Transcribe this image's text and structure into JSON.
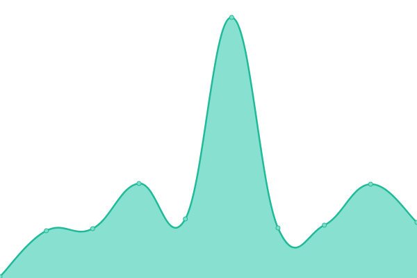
{
  "chart_data": {
    "type": "area",
    "categories": [
      null,
      null,
      null,
      null,
      null,
      null,
      null,
      null,
      null,
      null
    ],
    "values": [
      2,
      68,
      71,
      136,
      85,
      375,
      72,
      76,
      135,
      80
    ],
    "ylim": [
      0,
      400
    ],
    "color": "#1fba98",
    "fill": "#88e1d0",
    "point_fill": "#7fdcc8"
  }
}
